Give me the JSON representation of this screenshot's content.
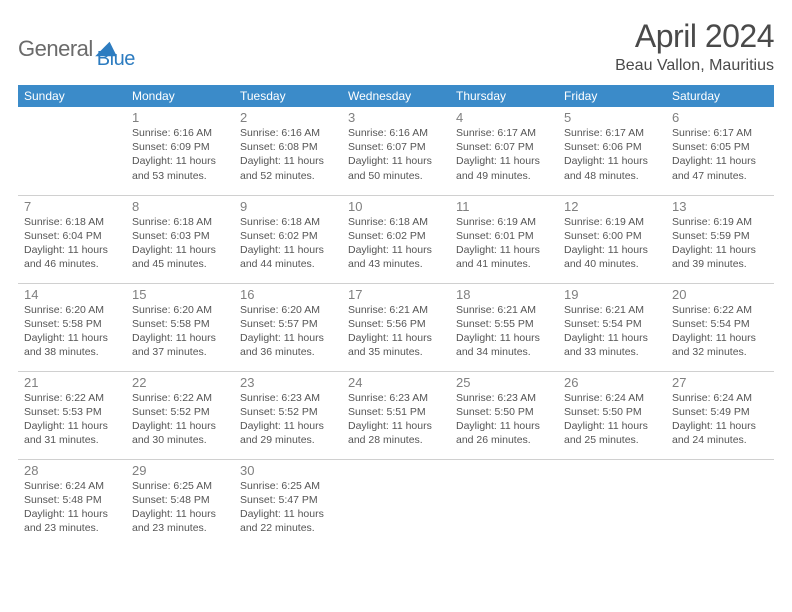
{
  "logo": {
    "word1": "General",
    "word2": "Blue"
  },
  "title": "April 2024",
  "location": "Beau Vallon, Mauritius",
  "header_bg": "#3b8bc9",
  "header_fg": "#ffffff",
  "border_color": "#d0d0d0",
  "daynum_color": "#808080",
  "text_color": "#555555",
  "weekdays": [
    "Sunday",
    "Monday",
    "Tuesday",
    "Wednesday",
    "Thursday",
    "Friday",
    "Saturday"
  ],
  "weeks": [
    [
      null,
      {
        "d": "1",
        "sr": "Sunrise: 6:16 AM",
        "ss": "Sunset: 6:09 PM",
        "dl1": "Daylight: 11 hours",
        "dl2": "and 53 minutes."
      },
      {
        "d": "2",
        "sr": "Sunrise: 6:16 AM",
        "ss": "Sunset: 6:08 PM",
        "dl1": "Daylight: 11 hours",
        "dl2": "and 52 minutes."
      },
      {
        "d": "3",
        "sr": "Sunrise: 6:16 AM",
        "ss": "Sunset: 6:07 PM",
        "dl1": "Daylight: 11 hours",
        "dl2": "and 50 minutes."
      },
      {
        "d": "4",
        "sr": "Sunrise: 6:17 AM",
        "ss": "Sunset: 6:07 PM",
        "dl1": "Daylight: 11 hours",
        "dl2": "and 49 minutes."
      },
      {
        "d": "5",
        "sr": "Sunrise: 6:17 AM",
        "ss": "Sunset: 6:06 PM",
        "dl1": "Daylight: 11 hours",
        "dl2": "and 48 minutes."
      },
      {
        "d": "6",
        "sr": "Sunrise: 6:17 AM",
        "ss": "Sunset: 6:05 PM",
        "dl1": "Daylight: 11 hours",
        "dl2": "and 47 minutes."
      }
    ],
    [
      {
        "d": "7",
        "sr": "Sunrise: 6:18 AM",
        "ss": "Sunset: 6:04 PM",
        "dl1": "Daylight: 11 hours",
        "dl2": "and 46 minutes."
      },
      {
        "d": "8",
        "sr": "Sunrise: 6:18 AM",
        "ss": "Sunset: 6:03 PM",
        "dl1": "Daylight: 11 hours",
        "dl2": "and 45 minutes."
      },
      {
        "d": "9",
        "sr": "Sunrise: 6:18 AM",
        "ss": "Sunset: 6:02 PM",
        "dl1": "Daylight: 11 hours",
        "dl2": "and 44 minutes."
      },
      {
        "d": "10",
        "sr": "Sunrise: 6:18 AM",
        "ss": "Sunset: 6:02 PM",
        "dl1": "Daylight: 11 hours",
        "dl2": "and 43 minutes."
      },
      {
        "d": "11",
        "sr": "Sunrise: 6:19 AM",
        "ss": "Sunset: 6:01 PM",
        "dl1": "Daylight: 11 hours",
        "dl2": "and 41 minutes."
      },
      {
        "d": "12",
        "sr": "Sunrise: 6:19 AM",
        "ss": "Sunset: 6:00 PM",
        "dl1": "Daylight: 11 hours",
        "dl2": "and 40 minutes."
      },
      {
        "d": "13",
        "sr": "Sunrise: 6:19 AM",
        "ss": "Sunset: 5:59 PM",
        "dl1": "Daylight: 11 hours",
        "dl2": "and 39 minutes."
      }
    ],
    [
      {
        "d": "14",
        "sr": "Sunrise: 6:20 AM",
        "ss": "Sunset: 5:58 PM",
        "dl1": "Daylight: 11 hours",
        "dl2": "and 38 minutes."
      },
      {
        "d": "15",
        "sr": "Sunrise: 6:20 AM",
        "ss": "Sunset: 5:58 PM",
        "dl1": "Daylight: 11 hours",
        "dl2": "and 37 minutes."
      },
      {
        "d": "16",
        "sr": "Sunrise: 6:20 AM",
        "ss": "Sunset: 5:57 PM",
        "dl1": "Daylight: 11 hours",
        "dl2": "and 36 minutes."
      },
      {
        "d": "17",
        "sr": "Sunrise: 6:21 AM",
        "ss": "Sunset: 5:56 PM",
        "dl1": "Daylight: 11 hours",
        "dl2": "and 35 minutes."
      },
      {
        "d": "18",
        "sr": "Sunrise: 6:21 AM",
        "ss": "Sunset: 5:55 PM",
        "dl1": "Daylight: 11 hours",
        "dl2": "and 34 minutes."
      },
      {
        "d": "19",
        "sr": "Sunrise: 6:21 AM",
        "ss": "Sunset: 5:54 PM",
        "dl1": "Daylight: 11 hours",
        "dl2": "and 33 minutes."
      },
      {
        "d": "20",
        "sr": "Sunrise: 6:22 AM",
        "ss": "Sunset: 5:54 PM",
        "dl1": "Daylight: 11 hours",
        "dl2": "and 32 minutes."
      }
    ],
    [
      {
        "d": "21",
        "sr": "Sunrise: 6:22 AM",
        "ss": "Sunset: 5:53 PM",
        "dl1": "Daylight: 11 hours",
        "dl2": "and 31 minutes."
      },
      {
        "d": "22",
        "sr": "Sunrise: 6:22 AM",
        "ss": "Sunset: 5:52 PM",
        "dl1": "Daylight: 11 hours",
        "dl2": "and 30 minutes."
      },
      {
        "d": "23",
        "sr": "Sunrise: 6:23 AM",
        "ss": "Sunset: 5:52 PM",
        "dl1": "Daylight: 11 hours",
        "dl2": "and 29 minutes."
      },
      {
        "d": "24",
        "sr": "Sunrise: 6:23 AM",
        "ss": "Sunset: 5:51 PM",
        "dl1": "Daylight: 11 hours",
        "dl2": "and 28 minutes."
      },
      {
        "d": "25",
        "sr": "Sunrise: 6:23 AM",
        "ss": "Sunset: 5:50 PM",
        "dl1": "Daylight: 11 hours",
        "dl2": "and 26 minutes."
      },
      {
        "d": "26",
        "sr": "Sunrise: 6:24 AM",
        "ss": "Sunset: 5:50 PM",
        "dl1": "Daylight: 11 hours",
        "dl2": "and 25 minutes."
      },
      {
        "d": "27",
        "sr": "Sunrise: 6:24 AM",
        "ss": "Sunset: 5:49 PM",
        "dl1": "Daylight: 11 hours",
        "dl2": "and 24 minutes."
      }
    ],
    [
      {
        "d": "28",
        "sr": "Sunrise: 6:24 AM",
        "ss": "Sunset: 5:48 PM",
        "dl1": "Daylight: 11 hours",
        "dl2": "and 23 minutes."
      },
      {
        "d": "29",
        "sr": "Sunrise: 6:25 AM",
        "ss": "Sunset: 5:48 PM",
        "dl1": "Daylight: 11 hours",
        "dl2": "and 23 minutes."
      },
      {
        "d": "30",
        "sr": "Sunrise: 6:25 AM",
        "ss": "Sunset: 5:47 PM",
        "dl1": "Daylight: 11 hours",
        "dl2": "and 22 minutes."
      },
      null,
      null,
      null,
      null
    ]
  ]
}
